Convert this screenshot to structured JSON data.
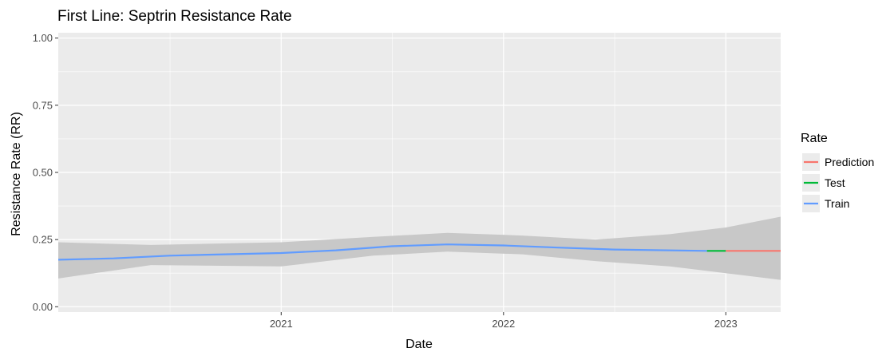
{
  "chart_data": {
    "type": "line",
    "title": "First Line: Septrin Resistance Rate",
    "xlabel": "Date",
    "ylabel": "Resistance Rate (RR)",
    "xlim": [
      "2020-01-01",
      "2023-04-01"
    ],
    "ylim": [
      -0.02,
      1.02
    ],
    "x_ticks": [
      {
        "label": "2021",
        "date": "2021-01-01"
      },
      {
        "label": "2022",
        "date": "2022-01-01"
      },
      {
        "label": "2023",
        "date": "2023-01-01"
      }
    ],
    "y_ticks": [
      {
        "label": "0.00",
        "value": 0.0
      },
      {
        "label": "0.25",
        "value": 0.25
      },
      {
        "label": "0.50",
        "value": 0.5
      },
      {
        "label": "0.75",
        "value": 0.75
      },
      {
        "label": "1.00",
        "value": 1.0
      }
    ],
    "background": "#ebebeb",
    "grid": true,
    "legend": {
      "title": "Rate",
      "position": "right",
      "entries": [
        {
          "label": "Prediction",
          "color": "#f8766d"
        },
        {
          "label": "Test",
          "color": "#00ba38"
        },
        {
          "label": "Train",
          "color": "#619cff"
        }
      ]
    },
    "ribbon": {
      "color": "#c8c8c8",
      "points": [
        {
          "x": "2020-01-01",
          "lower": 0.105,
          "upper": 0.24
        },
        {
          "x": "2020-06-01",
          "lower": 0.155,
          "upper": 0.23
        },
        {
          "x": "2021-01-01",
          "lower": 0.15,
          "upper": 0.24
        },
        {
          "x": "2021-06-01",
          "lower": 0.19,
          "upper": 0.26
        },
        {
          "x": "2021-10-01",
          "lower": 0.205,
          "upper": 0.275
        },
        {
          "x": "2022-02-01",
          "lower": 0.195,
          "upper": 0.265
        },
        {
          "x": "2022-06-01",
          "lower": 0.17,
          "upper": 0.25
        },
        {
          "x": "2022-10-01",
          "lower": 0.15,
          "upper": 0.27
        },
        {
          "x": "2023-01-01",
          "lower": 0.125,
          "upper": 0.295
        },
        {
          "x": "2023-04-01",
          "lower": 0.1,
          "upper": 0.335
        }
      ]
    },
    "series": [
      {
        "name": "Train",
        "color": "#619cff",
        "points": [
          {
            "x": "2020-01-01",
            "y": 0.175
          },
          {
            "x": "2020-04-01",
            "y": 0.18
          },
          {
            "x": "2020-07-01",
            "y": 0.19
          },
          {
            "x": "2020-10-01",
            "y": 0.195
          },
          {
            "x": "2021-01-01",
            "y": 0.2
          },
          {
            "x": "2021-04-01",
            "y": 0.21
          },
          {
            "x": "2021-07-01",
            "y": 0.225
          },
          {
            "x": "2021-10-01",
            "y": 0.232
          },
          {
            "x": "2022-01-01",
            "y": 0.228
          },
          {
            "x": "2022-04-01",
            "y": 0.22
          },
          {
            "x": "2022-07-01",
            "y": 0.213
          },
          {
            "x": "2022-12-01",
            "y": 0.208
          }
        ]
      },
      {
        "name": "Test",
        "color": "#00ba38",
        "points": [
          {
            "x": "2022-12-01",
            "y": 0.208
          },
          {
            "x": "2023-01-01",
            "y": 0.208
          }
        ]
      },
      {
        "name": "Prediction",
        "color": "#f8766d",
        "points": [
          {
            "x": "2023-01-01",
            "y": 0.208
          },
          {
            "x": "2023-04-01",
            "y": 0.208
          }
        ]
      }
    ]
  }
}
